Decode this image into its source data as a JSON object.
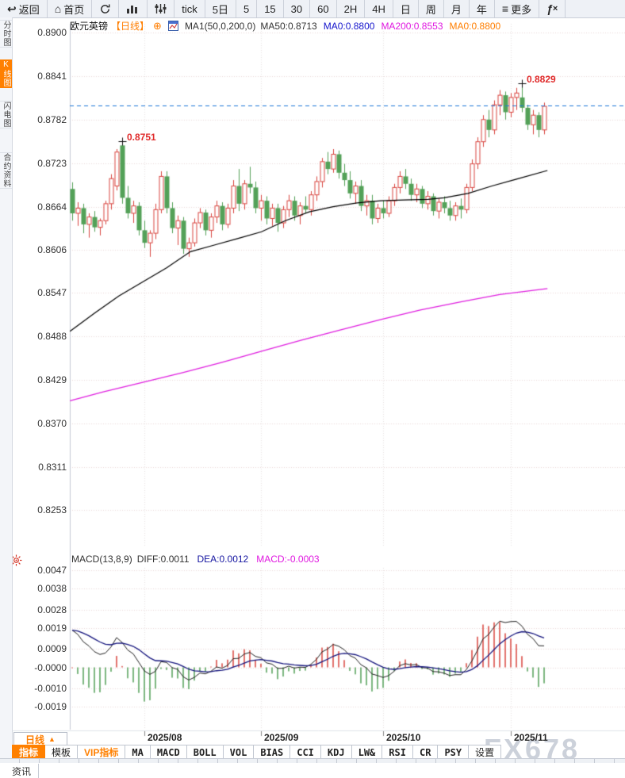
{
  "toolbar": {
    "items": [
      {
        "icon": "back-icon",
        "label": "返回"
      },
      {
        "icon": "home-icon",
        "label": "首页"
      },
      {
        "icon": "refresh-icon",
        "label": ""
      },
      {
        "icon": "bar-chart-icon",
        "label": ""
      },
      {
        "icon": "equalizer-icon",
        "label": ""
      },
      {
        "label": "tick"
      },
      {
        "label": "5日"
      },
      {
        "label": "5"
      },
      {
        "label": "15"
      },
      {
        "label": "30"
      },
      {
        "label": "60"
      },
      {
        "label": "2H"
      },
      {
        "label": "4H"
      },
      {
        "label": "日"
      },
      {
        "label": "周"
      },
      {
        "label": "月"
      },
      {
        "label": "年"
      },
      {
        "icon": "menu-icon",
        "label": "更多"
      },
      {
        "icon": "fx-icon",
        "label": ""
      }
    ]
  },
  "sidebar": {
    "items": [
      {
        "label": "分时图",
        "active": false
      },
      {
        "label": "K线图",
        "active": true
      },
      {
        "label": "闪电图",
        "active": false
      },
      {
        "label": "合约资料",
        "active": false
      }
    ]
  },
  "chart_header": {
    "symbol": "欧元英镑",
    "period": "【日线】",
    "add_icon": "⊕",
    "ma_settings": "MA1(50,0,200,0)",
    "ma50": "MA50:0.8713",
    "ma0_blue": "MA0:0.8800",
    "ma200": "MA200:0.8553",
    "ma0_orange": "MA0:0.8800"
  },
  "macd_header": {
    "title": "MACD(13,8,9)",
    "diff": "DIFF:0.0011",
    "dea": "DEA:0.0012",
    "macd": "MACD:-0.0003"
  },
  "colors": {
    "up": "#d9453f",
    "down": "#53a158",
    "ma50": "#000000",
    "ma200": "#e020e0",
    "diff_line": "#222222",
    "dea_line": "#15157e",
    "dashed_price": "#1d76d8",
    "accent_orange": "#ff8000",
    "grid": "#ead9d9",
    "annotation": "#e02b2b"
  },
  "chart_data": {
    "type": "candlestick",
    "symbol": "欧元英镑",
    "period": "日线",
    "y_axis_labels": [
      "0.8900",
      "0.8841",
      "0.8782",
      "0.8723",
      "0.8664",
      "0.8606",
      "0.8547",
      "0.8488",
      "0.8429",
      "0.8370",
      "0.8311",
      "0.8253"
    ],
    "y_range": [
      0.8253,
      0.89
    ],
    "x_axis_labels": [
      "2025/08",
      "2025/09",
      "2025/10",
      "2025/11"
    ],
    "month_start_indices": [
      13,
      34,
      56,
      79
    ],
    "current_price_line": 0.8801,
    "annotations": [
      {
        "text": "0.8751",
        "index": 9,
        "price": 0.8751
      },
      {
        "text": "0.8829",
        "index": 81,
        "price": 0.8829
      }
    ],
    "ohlc": [
      [
        0.8688,
        0.8697,
        0.8645,
        0.8655
      ],
      [
        0.8655,
        0.867,
        0.8638,
        0.8662
      ],
      [
        0.8662,
        0.8668,
        0.8628,
        0.864
      ],
      [
        0.864,
        0.8655,
        0.8622,
        0.865
      ],
      [
        0.865,
        0.8658,
        0.863,
        0.8636
      ],
      [
        0.8636,
        0.8648,
        0.8625,
        0.8645
      ],
      [
        0.8645,
        0.8672,
        0.864,
        0.8668
      ],
      [
        0.8668,
        0.8708,
        0.866,
        0.8702
      ],
      [
        0.8692,
        0.8742,
        0.8686,
        0.8738
      ],
      [
        0.8747,
        0.8751,
        0.8668,
        0.8676
      ],
      [
        0.8676,
        0.8692,
        0.8648,
        0.8655
      ],
      [
        0.8655,
        0.8672,
        0.8642,
        0.8665
      ],
      [
        0.8665,
        0.867,
        0.8625,
        0.8632
      ],
      [
        0.8632,
        0.8645,
        0.8608,
        0.8615
      ],
      [
        0.8615,
        0.8632,
        0.8596,
        0.8628
      ],
      [
        0.8628,
        0.8668,
        0.862,
        0.866
      ],
      [
        0.866,
        0.8712,
        0.8655,
        0.8705
      ],
      [
        0.8705,
        0.8712,
        0.8655,
        0.8662
      ],
      [
        0.8662,
        0.867,
        0.8628,
        0.8635
      ],
      [
        0.8635,
        0.8652,
        0.8612,
        0.8645
      ],
      [
        0.8645,
        0.865,
        0.86,
        0.8607
      ],
      [
        0.8607,
        0.8622,
        0.8596,
        0.8615
      ],
      [
        0.8615,
        0.8648,
        0.861,
        0.8642
      ],
      [
        0.8642,
        0.8662,
        0.8635,
        0.8656
      ],
      [
        0.8656,
        0.866,
        0.8625,
        0.8632
      ],
      [
        0.8632,
        0.8655,
        0.8622,
        0.865
      ],
      [
        0.865,
        0.8672,
        0.8642,
        0.8665
      ],
      [
        0.8665,
        0.867,
        0.8632,
        0.864
      ],
      [
        0.864,
        0.8668,
        0.8635,
        0.8662
      ],
      [
        0.8662,
        0.87,
        0.8655,
        0.8692
      ],
      [
        0.8692,
        0.8715,
        0.8658,
        0.8668
      ],
      [
        0.8668,
        0.87,
        0.866,
        0.8695
      ],
      [
        0.8695,
        0.8718,
        0.8682,
        0.869
      ],
      [
        0.869,
        0.8698,
        0.8655,
        0.8662
      ],
      [
        0.8662,
        0.868,
        0.8645,
        0.8672
      ],
      [
        0.8672,
        0.8678,
        0.864,
        0.8648
      ],
      [
        0.8648,
        0.8668,
        0.8638,
        0.8662
      ],
      [
        0.8662,
        0.8668,
        0.863,
        0.8642
      ],
      [
        0.8642,
        0.8665,
        0.8635,
        0.866
      ],
      [
        0.866,
        0.868,
        0.865,
        0.8672
      ],
      [
        0.8672,
        0.8678,
        0.8645,
        0.8652
      ],
      [
        0.8652,
        0.867,
        0.864,
        0.8665
      ],
      [
        0.8665,
        0.8678,
        0.8655,
        0.866
      ],
      [
        0.866,
        0.8685,
        0.8652,
        0.868
      ],
      [
        0.868,
        0.8705,
        0.8672,
        0.8698
      ],
      [
        0.8698,
        0.873,
        0.869,
        0.8725
      ],
      [
        0.8725,
        0.8738,
        0.8708,
        0.8715
      ],
      [
        0.8715,
        0.8742,
        0.871,
        0.8735
      ],
      [
        0.8735,
        0.874,
        0.8702,
        0.871
      ],
      [
        0.871,
        0.8722,
        0.8692,
        0.87
      ],
      [
        0.87,
        0.8712,
        0.8675,
        0.8682
      ],
      [
        0.8682,
        0.8698,
        0.8668,
        0.8692
      ],
      [
        0.8692,
        0.87,
        0.8658,
        0.8665
      ],
      [
        0.8665,
        0.868,
        0.8652,
        0.8672
      ],
      [
        0.8672,
        0.868,
        0.864,
        0.8648
      ],
      [
        0.8648,
        0.8668,
        0.8642,
        0.8662
      ],
      [
        0.8662,
        0.8672,
        0.8648,
        0.8655
      ],
      [
        0.8655,
        0.8678,
        0.865,
        0.8672
      ],
      [
        0.8672,
        0.8695,
        0.8665,
        0.869
      ],
      [
        0.869,
        0.8712,
        0.8682,
        0.8705
      ],
      [
        0.8705,
        0.8715,
        0.8688,
        0.8695
      ],
      [
        0.8695,
        0.8702,
        0.8672,
        0.868
      ],
      [
        0.868,
        0.8695,
        0.867,
        0.8688
      ],
      [
        0.8688,
        0.8692,
        0.8662,
        0.8668
      ],
      [
        0.8668,
        0.8685,
        0.866,
        0.8678
      ],
      [
        0.8678,
        0.8682,
        0.8652,
        0.8658
      ],
      [
        0.8658,
        0.8675,
        0.8648,
        0.867
      ],
      [
        0.867,
        0.8678,
        0.8655,
        0.8662
      ],
      [
        0.8662,
        0.8672,
        0.8645,
        0.8652
      ],
      [
        0.8652,
        0.867,
        0.8645,
        0.8665
      ],
      [
        0.8665,
        0.8675,
        0.8648,
        0.866
      ],
      [
        0.866,
        0.8695,
        0.8655,
        0.869
      ],
      [
        0.869,
        0.8728,
        0.8685,
        0.8722
      ],
      [
        0.8722,
        0.8758,
        0.8715,
        0.8752
      ],
      [
        0.8752,
        0.8788,
        0.8745,
        0.8782
      ],
      [
        0.8782,
        0.8795,
        0.8758,
        0.8768
      ],
      [
        0.8768,
        0.8808,
        0.8762,
        0.8802
      ],
      [
        0.8802,
        0.8822,
        0.8788,
        0.8815
      ],
      [
        0.8815,
        0.882,
        0.8782,
        0.8792
      ],
      [
        0.8792,
        0.8818,
        0.8785,
        0.8812
      ],
      [
        0.8812,
        0.8825,
        0.8795,
        0.8818
      ],
      [
        0.8812,
        0.8829,
        0.8792,
        0.8798
      ],
      [
        0.8798,
        0.8802,
        0.8768,
        0.8775
      ],
      [
        0.8775,
        0.8795,
        0.8762,
        0.8788
      ],
      [
        0.8788,
        0.8792,
        0.8758,
        0.8768
      ],
      [
        0.8768,
        0.8805,
        0.8762,
        0.88
      ]
    ],
    "overlays": {
      "ma50_points": [
        [
          -0.4,
          0.8495
        ],
        [
          4.1,
          0.852
        ],
        [
          8.4,
          0.8543
        ],
        [
          12.7,
          0.8562
        ],
        [
          17,
          0.8581
        ],
        [
          21.3,
          0.8603
        ],
        [
          25.6,
          0.8612
        ],
        [
          29.9,
          0.8621
        ],
        [
          34.1,
          0.863
        ],
        [
          38.4,
          0.8645
        ],
        [
          42.7,
          0.8657
        ],
        [
          47,
          0.8664
        ],
        [
          51.3,
          0.8669
        ],
        [
          55.6,
          0.8672
        ],
        [
          59.9,
          0.8673
        ],
        [
          64.1,
          0.8674
        ],
        [
          67,
          0.8676
        ],
        [
          71.3,
          0.8682
        ],
        [
          75.6,
          0.8692
        ],
        [
          79.9,
          0.8701
        ],
        [
          85.6,
          0.8713
        ]
      ],
      "ma200_points": [
        [
          -0.4,
          0.8401
        ],
        [
          5.6,
          0.8413
        ],
        [
          12.7,
          0.8426
        ],
        [
          19.9,
          0.8439
        ],
        [
          27,
          0.8453
        ],
        [
          34.1,
          0.8468
        ],
        [
          41.3,
          0.8483
        ],
        [
          48.4,
          0.8497
        ],
        [
          55.6,
          0.8511
        ],
        [
          62.7,
          0.8524
        ],
        [
          70,
          0.8535
        ],
        [
          77,
          0.8545
        ],
        [
          85.6,
          0.8553
        ]
      ]
    },
    "macd": {
      "params_label": "MACD(13,8,9)",
      "fast": 8,
      "slow": 13,
      "signal": 9,
      "seed_gap": 0.0021,
      "seed_dea": 0.0018,
      "y_axis_labels": [
        "0.0047",
        "0.0038",
        "0.0028",
        "0.0019",
        "0.0009",
        "-0.0000",
        "-0.0010",
        "-0.0019"
      ],
      "end_values": {
        "diff": 0.0011,
        "dea": 0.0012,
        "hist": -0.0003
      }
    }
  },
  "x_axis": {
    "period_button": "日线",
    "period_arrow": "▲"
  },
  "bottom_tabs": {
    "items": [
      {
        "label": "指标",
        "style": "active"
      },
      {
        "label": "模板",
        "style": "plain"
      },
      {
        "label": "VIP指标",
        "style": "vip"
      },
      {
        "label": "MA",
        "style": "mono"
      },
      {
        "label": "MACD",
        "style": "mono"
      },
      {
        "label": "BOLL",
        "style": "mono"
      },
      {
        "label": "VOL",
        "style": "mono"
      },
      {
        "label": "BIAS",
        "style": "mono"
      },
      {
        "label": "CCI",
        "style": "mono"
      },
      {
        "label": "KDJ",
        "style": "mono"
      },
      {
        "label": "LW&",
        "style": "mono"
      },
      {
        "label": "RSI",
        "style": "mono"
      },
      {
        "label": "CR",
        "style": "mono"
      },
      {
        "label": "PSY",
        "style": "mono"
      },
      {
        "label": "设置",
        "style": "plain"
      }
    ]
  },
  "watermark": "FX678",
  "news_tab": "资讯"
}
